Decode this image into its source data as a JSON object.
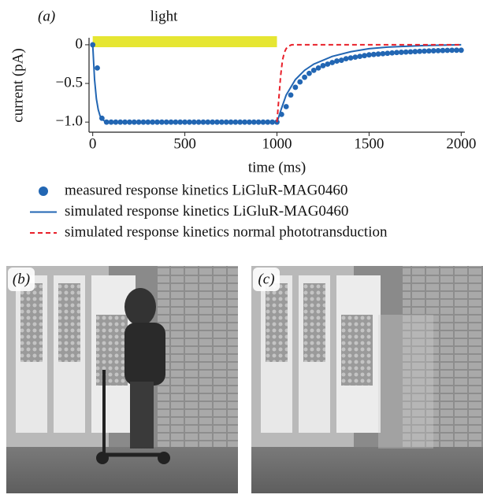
{
  "chart_data": {
    "type": "line",
    "panel_label": "(a)",
    "xlabel": "time (ms)",
    "ylabel": "current (pA)",
    "xlim": [
      -20,
      2020
    ],
    "ylim": [
      -1.1,
      0.05
    ],
    "xticks": [
      0,
      500,
      1000,
      1500,
      2000
    ],
    "yticks": [
      0,
      {
        "value": -0.5,
        "label": "−0.5"
      },
      {
        "value": -1,
        "label": "−1.0"
      }
    ],
    "light": {
      "label": "light",
      "x": [
        0,
        1000
      ],
      "color": "#e6e632"
    },
    "series": [
      {
        "name": "measured response kinetics LiGluR-MAG0460",
        "color": "#2266b3",
        "style": "dots",
        "x": [
          0,
          25,
          50,
          75,
          100,
          125,
          150,
          175,
          200,
          225,
          250,
          275,
          300,
          325,
          350,
          375,
          400,
          425,
          450,
          475,
          500,
          525,
          550,
          575,
          600,
          625,
          650,
          675,
          700,
          725,
          750,
          775,
          800,
          825,
          850,
          875,
          900,
          925,
          950,
          975,
          1000,
          1025,
          1050,
          1075,
          1100,
          1125,
          1150,
          1175,
          1200,
          1225,
          1250,
          1275,
          1300,
          1325,
          1350,
          1375,
          1400,
          1425,
          1450,
          1475,
          1500,
          1525,
          1550,
          1575,
          1600,
          1625,
          1650,
          1675,
          1700,
          1725,
          1750,
          1775,
          1800,
          1825,
          1850,
          1875,
          1900,
          1925,
          1950,
          1975,
          2000
        ],
        "values": [
          0,
          -0.3,
          -0.95,
          -1,
          -1,
          -1,
          -1,
          -1,
          -1,
          -1,
          -1,
          -1,
          -1,
          -1,
          -1,
          -1,
          -1,
          -1,
          -1,
          -1,
          -1,
          -1,
          -1,
          -1,
          -1,
          -1,
          -1,
          -1,
          -1,
          -1,
          -1,
          -1,
          -1,
          -1,
          -1,
          -1,
          -1,
          -1,
          -1,
          -1,
          -1,
          -0.9,
          -0.8,
          -0.65,
          -0.55,
          -0.48,
          -0.42,
          -0.37,
          -0.33,
          -0.3,
          -0.27,
          -0.25,
          -0.23,
          -0.21,
          -0.2,
          -0.18,
          -0.17,
          -0.16,
          -0.15,
          -0.14,
          -0.13,
          -0.125,
          -0.12,
          -0.115,
          -0.11,
          -0.105,
          -0.1,
          -0.097,
          -0.094,
          -0.091,
          -0.088,
          -0.085,
          -0.082,
          -0.08,
          -0.078,
          -0.076,
          -0.074,
          -0.072,
          -0.071,
          -0.07,
          -0.07
        ]
      },
      {
        "name": "simulated response kinetics LiGluR-MAG0460",
        "color": "#2266b3",
        "style": "solid",
        "x": [
          0,
          10,
          20,
          30,
          40,
          50,
          60,
          80,
          100,
          1000,
          1010,
          1025,
          1050,
          1100,
          1150,
          1200,
          1300,
          1400,
          1500,
          1600,
          1700,
          1800,
          1900,
          2000
        ],
        "values": [
          0,
          -0.45,
          -0.7,
          -0.84,
          -0.92,
          -0.96,
          -0.98,
          -0.995,
          -1,
          -1,
          -0.93,
          -0.82,
          -0.65,
          -0.45,
          -0.33,
          -0.25,
          -0.15,
          -0.09,
          -0.05,
          -0.03,
          -0.02,
          -0.01,
          -0.005,
          0
        ]
      },
      {
        "name": "simulated response kinetics normal phototransduction",
        "color": "#e8202a",
        "style": "dash",
        "x": [
          1000,
          1010,
          1020,
          1030,
          1040,
          1050,
          1060,
          1080,
          1100,
          2000
        ],
        "values": [
          -1,
          -0.7,
          -0.4,
          -0.2,
          -0.1,
          -0.05,
          -0.02,
          0,
          0,
          0
        ]
      }
    ]
  },
  "panels": [
    {
      "label": "(b)"
    },
    {
      "label": "(c)"
    }
  ]
}
